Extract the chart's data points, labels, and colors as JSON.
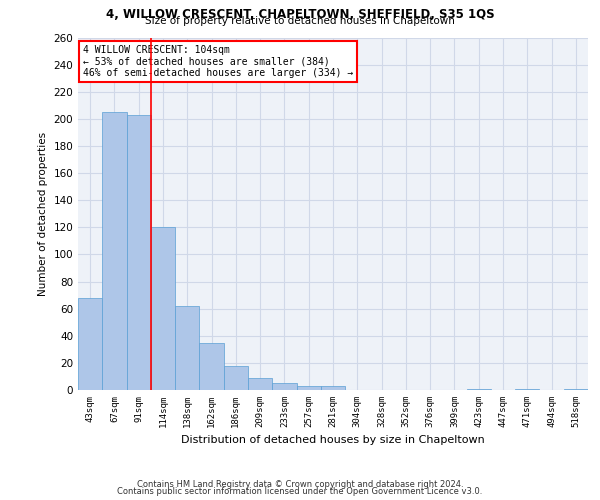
{
  "title_line1": "4, WILLOW CRESCENT, CHAPELTOWN, SHEFFIELD, S35 1QS",
  "title_line2": "Size of property relative to detached houses in Chapeltown",
  "xlabel": "Distribution of detached houses by size in Chapeltown",
  "ylabel": "Number of detached properties",
  "footer_line1": "Contains HM Land Registry data © Crown copyright and database right 2024.",
  "footer_line2": "Contains public sector information licensed under the Open Government Licence v3.0.",
  "categories": [
    "43sqm",
    "67sqm",
    "91sqm",
    "114sqm",
    "138sqm",
    "162sqm",
    "186sqm",
    "209sqm",
    "233sqm",
    "257sqm",
    "281sqm",
    "304sqm",
    "328sqm",
    "352sqm",
    "376sqm",
    "399sqm",
    "423sqm",
    "447sqm",
    "471sqm",
    "494sqm",
    "518sqm"
  ],
  "values": [
    68,
    205,
    203,
    120,
    62,
    35,
    18,
    9,
    5,
    3,
    3,
    0,
    0,
    0,
    0,
    0,
    1,
    0,
    1,
    0,
    1
  ],
  "bar_color": "#aec6e8",
  "bar_edge_color": "#5a9fd4",
  "vline_x": 2.5,
  "vline_color": "red",
  "annotation_text": "4 WILLOW CRESCENT: 104sqm\n← 53% of detached houses are smaller (384)\n46% of semi-detached houses are larger (334) →",
  "annotation_box_color": "white",
  "annotation_box_edge_color": "red",
  "ylim": [
    0,
    260
  ],
  "yticks": [
    0,
    20,
    40,
    60,
    80,
    100,
    120,
    140,
    160,
    180,
    200,
    220,
    240,
    260
  ],
  "grid_color": "#d0d8e8",
  "background_color": "#eef2f8"
}
